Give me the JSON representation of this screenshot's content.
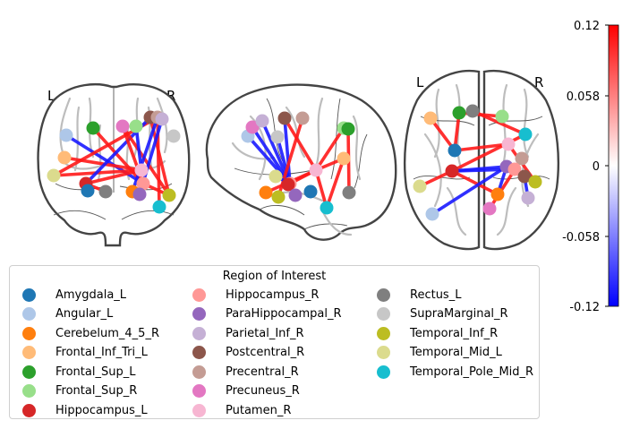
{
  "hemisphere_labels": {
    "left": "L",
    "right": "R"
  },
  "colorbar": {
    "ticks": [
      "0.12",
      "0.058",
      "0",
      "-0.058",
      "-0.12"
    ],
    "colors": {
      "top": "#ff0000",
      "mid": "#ffffff",
      "bottom": "#0000ff"
    }
  },
  "legend": {
    "title": "Region of Interest",
    "items": [
      {
        "label": "Amygdala_L",
        "color": "#1f77b4"
      },
      {
        "label": "Angular_L",
        "color": "#aec7e8"
      },
      {
        "label": "Cerebelum_4_5_R",
        "color": "#ff7f0e"
      },
      {
        "label": "Frontal_Inf_Tri_L",
        "color": "#ffbb78"
      },
      {
        "label": "Frontal_Sup_L",
        "color": "#2ca02c"
      },
      {
        "label": "Frontal_Sup_R",
        "color": "#98df8a"
      },
      {
        "label": "Hippocampus_L",
        "color": "#d62728"
      },
      {
        "label": "Hippocampus_R",
        "color": "#ff9896"
      },
      {
        "label": "ParaHippocampal_R",
        "color": "#9467bd"
      },
      {
        "label": "Parietal_Inf_R",
        "color": "#c5b0d5"
      },
      {
        "label": "Postcentral_R",
        "color": "#8c564b"
      },
      {
        "label": "Precentral_R",
        "color": "#c49c94"
      },
      {
        "label": "Precuneus_R",
        "color": "#e377c2"
      },
      {
        "label": "Putamen_R",
        "color": "#f7b6d2"
      },
      {
        "label": "Rectus_L",
        "color": "#7f7f7f"
      },
      {
        "label": "SupraMarginal_R",
        "color": "#c7c7c7"
      },
      {
        "label": "Temporal_Inf_R",
        "color": "#bcbd22"
      },
      {
        "label": "Temporal_Mid_L",
        "color": "#dbdb8d"
      },
      {
        "label": "Temporal_Pole_Mid_R",
        "color": "#17becf"
      }
    ]
  },
  "connection_colors": {
    "positive": "#ff1a1a",
    "negative": "#1a1aff"
  }
}
